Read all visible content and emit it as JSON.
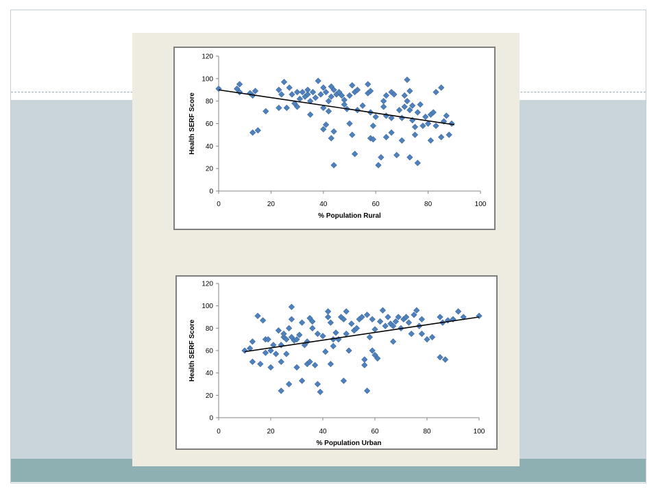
{
  "colors": {
    "marker": "#4f81bd",
    "marker_edge": "#3a679c",
    "trendline": "#000000",
    "axis": "#868686"
  },
  "chart_data": [
    {
      "type": "scatter",
      "xlabel": "% Population Rural",
      "ylabel": "Health SERF Score",
      "xlim": [
        0,
        100
      ],
      "ylim": [
        0,
        120
      ],
      "xticks": [
        "0",
        "20",
        "40",
        "60",
        "80",
        "100"
      ],
      "yticks": [
        "0",
        "20",
        "40",
        "60",
        "80",
        "100",
        "120"
      ],
      "grid": false,
      "marker": "diamond",
      "trendline": {
        "x": [
          0,
          90
        ],
        "y": [
          90,
          59
        ]
      },
      "points": [
        [
          0,
          91
        ],
        [
          7,
          91
        ],
        [
          8,
          95
        ],
        [
          8,
          88
        ],
        [
          12,
          87
        ],
        [
          13,
          85
        ],
        [
          14,
          89
        ],
        [
          13,
          52
        ],
        [
          15,
          54
        ],
        [
          18,
          71
        ],
        [
          23,
          90
        ],
        [
          23,
          74
        ],
        [
          24,
          86
        ],
        [
          25,
          97
        ],
        [
          26,
          74
        ],
        [
          27,
          92
        ],
        [
          28,
          86
        ],
        [
          29,
          78
        ],
        [
          30,
          88
        ],
        [
          30,
          75
        ],
        [
          31,
          82
        ],
        [
          32,
          88
        ],
        [
          33,
          84
        ],
        [
          34,
          86
        ],
        [
          34,
          90
        ],
        [
          35,
          80
        ],
        [
          35,
          68
        ],
        [
          36,
          88
        ],
        [
          37,
          83
        ],
        [
          38,
          98
        ],
        [
          39,
          86
        ],
        [
          40,
          92
        ],
        [
          40,
          74
        ],
        [
          40,
          55
        ],
        [
          41,
          59
        ],
        [
          41,
          88
        ],
        [
          42,
          80
        ],
        [
          42,
          71
        ],
        [
          43,
          84
        ],
        [
          43,
          93
        ],
        [
          44,
          90
        ],
        [
          44,
          53
        ],
        [
          43,
          47
        ],
        [
          44,
          23
        ],
        [
          45,
          86
        ],
        [
          46,
          88
        ],
        [
          47,
          85
        ],
        [
          48,
          81
        ],
        [
          48,
          77
        ],
        [
          49,
          73
        ],
        [
          50,
          85
        ],
        [
          50,
          60
        ],
        [
          51,
          50
        ],
        [
          51,
          94
        ],
        [
          52,
          33
        ],
        [
          52,
          88
        ],
        [
          53,
          72
        ],
        [
          53,
          90
        ],
        [
          55,
          76
        ],
        [
          57,
          95
        ],
        [
          57,
          87
        ],
        [
          58,
          70
        ],
        [
          58,
          47
        ],
        [
          58,
          89
        ],
        [
          59,
          58
        ],
        [
          59,
          46
        ],
        [
          60,
          66
        ],
        [
          61,
          23
        ],
        [
          62,
          30
        ],
        [
          63,
          80
        ],
        [
          63,
          75
        ],
        [
          64,
          85
        ],
        [
          64,
          67
        ],
        [
          64,
          48
        ],
        [
          66,
          65
        ],
        [
          66,
          88
        ],
        [
          66,
          52
        ],
        [
          67,
          86
        ],
        [
          68,
          32
        ],
        [
          69,
          72
        ],
        [
          70,
          65
        ],
        [
          70,
          45
        ],
        [
          71,
          75
        ],
        [
          71,
          85
        ],
        [
          72,
          99
        ],
        [
          72,
          80
        ],
        [
          73,
          89
        ],
        [
          73,
          72
        ],
        [
          73,
          30
        ],
        [
          74,
          63
        ],
        [
          74,
          76
        ],
        [
          75,
          57
        ],
        [
          75,
          50
        ],
        [
          76,
          70
        ],
        [
          76,
          25
        ],
        [
          77,
          77
        ],
        [
          78,
          58
        ],
        [
          79,
          66
        ],
        [
          80,
          60
        ],
        [
          81,
          45
        ],
        [
          81,
          68
        ],
        [
          82,
          70
        ],
        [
          83,
          88
        ],
        [
          83,
          58
        ],
        [
          85,
          92
        ],
        [
          85,
          48
        ],
        [
          86,
          62
        ],
        [
          87,
          67
        ],
        [
          88,
          50
        ],
        [
          89,
          60
        ]
      ]
    },
    {
      "type": "scatter",
      "xlabel": "% Population Urban",
      "ylabel": "Health SERF Score",
      "xlim": [
        0,
        100
      ],
      "ylim": [
        0,
        120
      ],
      "xticks": [
        "0",
        "20",
        "40",
        "60",
        "80",
        "100"
      ],
      "yticks": [
        "0",
        "20",
        "40",
        "60",
        "80",
        "100",
        "120"
      ],
      "grid": false,
      "marker": "diamond",
      "trendline": {
        "x": [
          10,
          100
        ],
        "y": [
          59,
          90
        ]
      },
      "points": [
        [
          10,
          60
        ],
        [
          12,
          62
        ],
        [
          13,
          50
        ],
        [
          13,
          68
        ],
        [
          15,
          91
        ],
        [
          16,
          48
        ],
        [
          17,
          87
        ],
        [
          18,
          58
        ],
        [
          18,
          70
        ],
        [
          19,
          70
        ],
        [
          20,
          45
        ],
        [
          20,
          60
        ],
        [
          21,
          65
        ],
        [
          22,
          57
        ],
        [
          23,
          78
        ],
        [
          24,
          24
        ],
        [
          24,
          50
        ],
        [
          24,
          65
        ],
        [
          25,
          72
        ],
        [
          25,
          75
        ],
        [
          26,
          57
        ],
        [
          26,
          70
        ],
        [
          27,
          30
        ],
        [
          27,
          80
        ],
        [
          28,
          99
        ],
        [
          28,
          88
        ],
        [
          28,
          72
        ],
        [
          29,
          69
        ],
        [
          30,
          45
        ],
        [
          30,
          70
        ],
        [
          31,
          74
        ],
        [
          32,
          33
        ],
        [
          32,
          85
        ],
        [
          33,
          65
        ],
        [
          34,
          48
        ],
        [
          34,
          68
        ],
        [
          35,
          50
        ],
        [
          35,
          89
        ],
        [
          36,
          80
        ],
        [
          36,
          86
        ],
        [
          37,
          47
        ],
        [
          38,
          30
        ],
        [
          38,
          75
        ],
        [
          39,
          23
        ],
        [
          40,
          73
        ],
        [
          41,
          59
        ],
        [
          42,
          90
        ],
        [
          42,
          95
        ],
        [
          43,
          48
        ],
        [
          43,
          85
        ],
        [
          44,
          70
        ],
        [
          44,
          64
        ],
        [
          45,
          76
        ],
        [
          46,
          70
        ],
        [
          47,
          90
        ],
        [
          48,
          33
        ],
        [
          48,
          88
        ],
        [
          49,
          95
        ],
        [
          49,
          75
        ],
        [
          50,
          60
        ],
        [
          51,
          84
        ],
        [
          52,
          78
        ],
        [
          53,
          80
        ],
        [
          54,
          88
        ],
        [
          55,
          90
        ],
        [
          56,
          52
        ],
        [
          56,
          47
        ],
        [
          57,
          24
        ],
        [
          57,
          92
        ],
        [
          58,
          72
        ],
        [
          59,
          88
        ],
        [
          59,
          60
        ],
        [
          60,
          79
        ],
        [
          60,
          56
        ],
        [
          61,
          53
        ],
        [
          62,
          86
        ],
        [
          63,
          96
        ],
        [
          64,
          82
        ],
        [
          65,
          90
        ],
        [
          66,
          84
        ],
        [
          67,
          68
        ],
        [
          67,
          82
        ],
        [
          68,
          86
        ],
        [
          69,
          90
        ],
        [
          70,
          80
        ],
        [
          71,
          88
        ],
        [
          72,
          90
        ],
        [
          73,
          85
        ],
        [
          74,
          75
        ],
        [
          75,
          92
        ],
        [
          76,
          96
        ],
        [
          77,
          82
        ],
        [
          78,
          88
        ],
        [
          78,
          75
        ],
        [
          80,
          70
        ],
        [
          82,
          72
        ],
        [
          85,
          54
        ],
        [
          85,
          90
        ],
        [
          86,
          85
        ],
        [
          87,
          52
        ],
        [
          88,
          87
        ],
        [
          90,
          88
        ],
        [
          92,
          95
        ],
        [
          94,
          90
        ],
        [
          100,
          91
        ]
      ]
    }
  ]
}
